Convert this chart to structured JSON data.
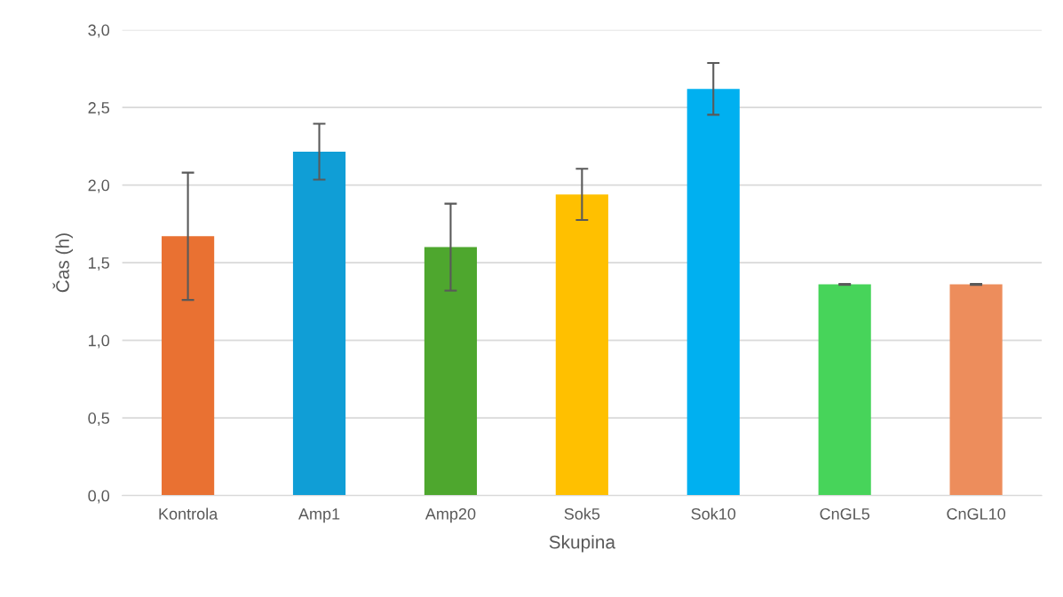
{
  "chart_data": {
    "type": "bar",
    "xlabel": "Skupina",
    "ylabel": "Čas (h)",
    "categories": [
      "Kontrola",
      "Amp1",
      "Amp20",
      "Sok5",
      "Sok10",
      "CnGL5",
      "CnGL10"
    ],
    "values": [
      1.67,
      2.215,
      1.6,
      1.94,
      2.62,
      1.36,
      1.36
    ],
    "errors": [
      0.41,
      0.18,
      0.28,
      0.165,
      0.167,
      0.003,
      0.003
    ],
    "colors": [
      "#e97132",
      "#109ed6",
      "#4ea72e",
      "#ffc000",
      "#00b0f0",
      "#47d45a",
      "#ed8d5c"
    ],
    "ylim": [
      0,
      3
    ],
    "yticks": [
      {
        "value": 0,
        "label": "0,0"
      },
      {
        "value": 0.5,
        "label": "0,5"
      },
      {
        "value": 1,
        "label": "1,0"
      },
      {
        "value": 1.5,
        "label": "1,5"
      },
      {
        "value": 2,
        "label": "2,0"
      },
      {
        "value": 2.5,
        "label": "2,5"
      },
      {
        "value": 3,
        "label": "3,0"
      }
    ],
    "grid": "y"
  }
}
